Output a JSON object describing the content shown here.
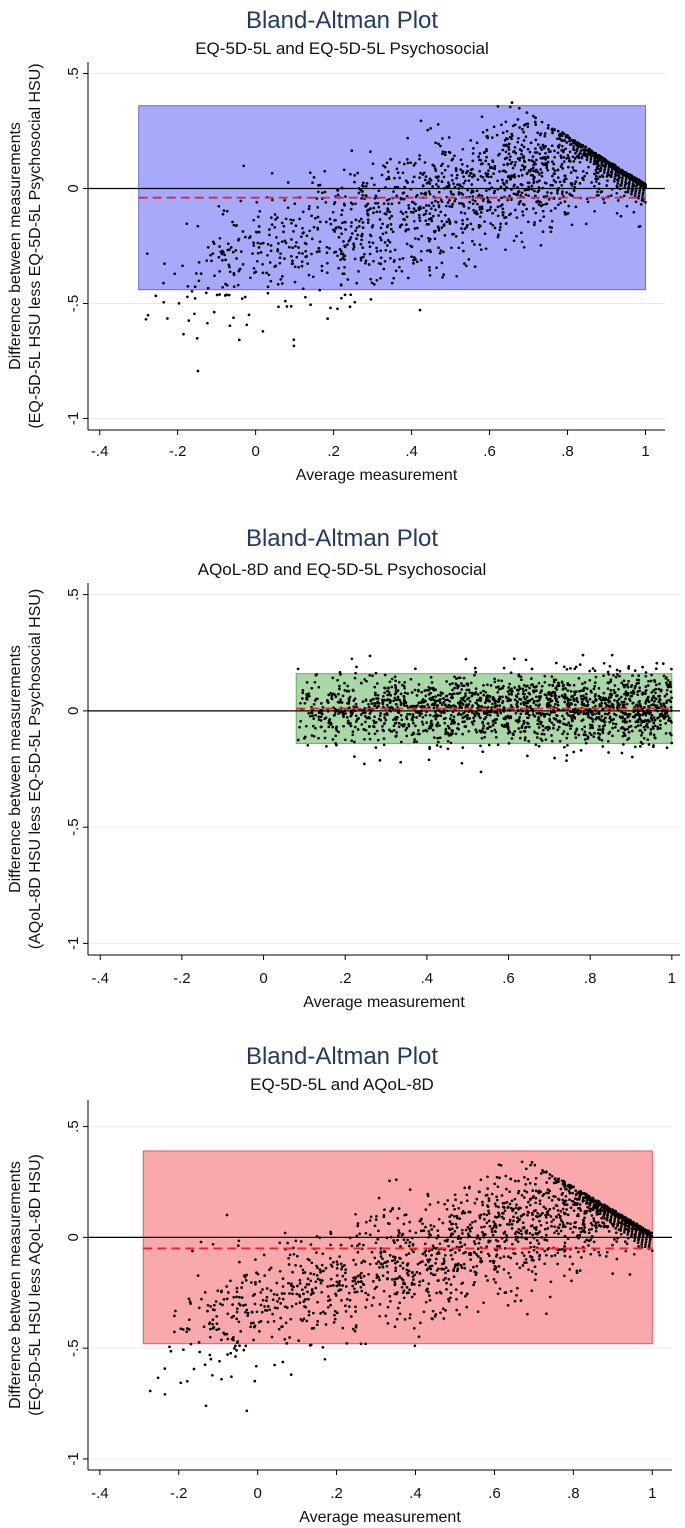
{
  "figure": {
    "description_title": "Bland-Altman Plot"
  },
  "chart_data": [
    {
      "type": "scatter",
      "title": "Bland-Altman Plot",
      "subtitle": "EQ-5D-5L and EQ-5D-5L Psychosocial",
      "xlabel": "Average measurement",
      "ylabel": [
        "Difference between measurements",
        "(EQ-5D-5L HSU less EQ-5D-5L Psychosocial HSU)"
      ],
      "xlim": [
        -0.43,
        1.05
      ],
      "ylim": [
        -1.05,
        0.55
      ],
      "xticks": [
        -0.4,
        -0.2,
        0,
        0.2,
        0.4,
        0.6,
        0.8,
        1
      ],
      "xtick_labels": [
        "-.4",
        "-.2",
        "0",
        ".2",
        ".4",
        ".6",
        ".8",
        "1"
      ],
      "yticks": [
        0.5,
        0,
        -0.5,
        -1
      ],
      "ytick_labels": [
        ".5",
        "0",
        "-.5",
        "-1"
      ],
      "grid": "horizontal",
      "mean_difference": -0.04,
      "limits_of_agreement": [
        -0.44,
        0.36
      ],
      "band_x_range": [
        -0.3,
        1.0
      ],
      "band_color": "#a9a9fb",
      "band_edge_color": "#6b6be8",
      "mean_line_color": "#e8262b",
      "n_points": 1700,
      "seed": 11,
      "point_spread": {
        "x_range": [
          -0.3,
          1.0
        ],
        "min_diff_at_low": -0.85,
        "max_diff_slope": 1.0
      }
    },
    {
      "type": "scatter",
      "title": "Bland-Altman Plot",
      "subtitle": "AQoL-8D and EQ-5D-5L Psychosocial",
      "xlabel": "Average measurement",
      "ylabel": [
        "Difference between measurements",
        "(AQoL-8D HSU less EQ-5D-5L Psychosocial HSU)"
      ],
      "xlim": [
        -0.43,
        1.02
      ],
      "ylim": [
        -1.05,
        0.55
      ],
      "xticks": [
        -0.4,
        -0.2,
        0,
        0.2,
        0.4,
        0.6,
        0.8,
        1
      ],
      "xtick_labels": [
        "-.4",
        "-.2",
        "0",
        ".2",
        ".4",
        ".6",
        ".8",
        "1"
      ],
      "yticks": [
        0.5,
        0,
        -0.5,
        -1
      ],
      "ytick_labels": [
        ".5",
        "0",
        "-.5",
        "-1"
      ],
      "grid": "horizontal",
      "mean_difference": 0.01,
      "limits_of_agreement": [
        -0.14,
        0.16
      ],
      "band_x_range": [
        0.08,
        1.0
      ],
      "band_color": "#a8d8a5",
      "band_edge_color": "#5fb35a",
      "mean_line_color": "#e8262b",
      "n_points": 1800,
      "seed": 23,
      "point_spread": {
        "x_range": [
          0.08,
          1.0
        ],
        "sd": 0.075
      }
    },
    {
      "type": "scatter",
      "title": "Bland-Altman Plot",
      "subtitle": "EQ-5D-5L and AQoL-8D",
      "xlabel": "Average measurement",
      "ylabel": [
        "Difference between measurements",
        "(EQ-5D-5L HSU less AQoL-8D HSU)"
      ],
      "xlim": [
        -0.43,
        1.05
      ],
      "ylim": [
        -1.05,
        0.62
      ],
      "xticks": [
        -0.4,
        -0.2,
        0,
        0.2,
        0.4,
        0.6,
        0.8,
        1
      ],
      "xtick_labels": [
        "-.4",
        "-.2",
        "0",
        ".2",
        ".4",
        ".6",
        ".8",
        "1"
      ],
      "yticks": [
        0.5,
        0,
        -0.5,
        -1
      ],
      "ytick_labels": [
        ".5",
        "0",
        "-.5",
        "-1"
      ],
      "grid": "horizontal",
      "mean_difference": -0.05,
      "limits_of_agreement": [
        -0.48,
        0.39
      ],
      "band_x_range": [
        -0.29,
        1.0
      ],
      "band_color": "#f9a9ab",
      "band_edge_color": "#e35a5e",
      "mean_line_color": "#e8262b",
      "n_points": 1700,
      "seed": 37,
      "point_spread": {
        "x_range": [
          -0.29,
          1.0
        ],
        "min_diff_at_low": -0.9,
        "max_diff_slope": 1.0
      }
    }
  ]
}
